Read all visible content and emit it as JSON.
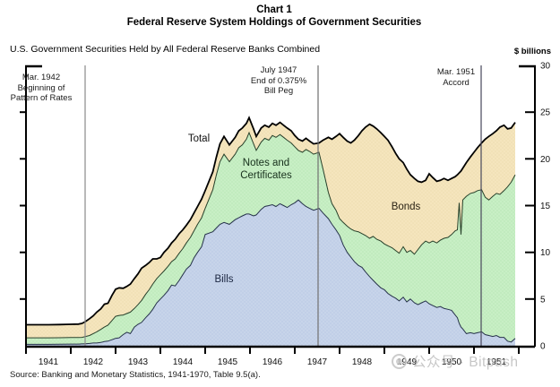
{
  "chart_data": {
    "type": "area",
    "stacked": true,
    "title_line1": "Chart 1",
    "title_line2": "Federal Reserve System Holdings of Government Securities",
    "subtitle": "U.S. Government Securities Held by All Federal Reserve Banks Combined",
    "ylabel": "$ billions",
    "ylim": [
      0,
      30
    ],
    "yticks": [
      0,
      5,
      10,
      15,
      20,
      25,
      30
    ],
    "x_year_labels": [
      "1941",
      "1942",
      "1943",
      "1944",
      "1945",
      "1946",
      "1947",
      "1948",
      "1949",
      "1950",
      "1951"
    ],
    "xlim": [
      1941,
      1952
    ],
    "grid": false,
    "legend": "inline-labels",
    "x": [
      1941.0,
      1941.25,
      1941.5,
      1941.75,
      1942.0,
      1942.17,
      1942.25,
      1942.33,
      1942.42,
      1942.5,
      1942.58,
      1942.67,
      1942.75,
      1942.83,
      1942.92,
      1943.0,
      1943.08,
      1943.17,
      1943.25,
      1943.33,
      1943.42,
      1943.5,
      1943.58,
      1943.67,
      1943.75,
      1943.83,
      1943.92,
      1944.0,
      1944.08,
      1944.17,
      1944.25,
      1944.33,
      1944.42,
      1944.5,
      1944.58,
      1944.67,
      1944.75,
      1944.83,
      1944.92,
      1945.0,
      1945.17,
      1945.25,
      1945.33,
      1945.42,
      1945.54,
      1945.67,
      1945.75,
      1945.83,
      1945.92,
      1945.98,
      1946.08,
      1946.14,
      1946.25,
      1946.33,
      1946.42,
      1946.5,
      1946.58,
      1946.67,
      1946.75,
      1946.83,
      1946.92,
      1947.0,
      1947.08,
      1947.17,
      1947.25,
      1947.33,
      1947.42,
      1947.54,
      1947.63,
      1947.75,
      1947.83,
      1947.92,
      1948.0,
      1948.08,
      1948.17,
      1948.25,
      1948.33,
      1948.42,
      1948.5,
      1948.58,
      1948.67,
      1948.75,
      1948.83,
      1948.92,
      1949.0,
      1949.08,
      1949.17,
      1949.25,
      1949.33,
      1949.42,
      1949.5,
      1949.58,
      1949.67,
      1949.75,
      1949.83,
      1949.92,
      1950.0,
      1950.08,
      1950.17,
      1950.25,
      1950.33,
      1950.42,
      1950.5,
      1950.58,
      1950.63,
      1950.67,
      1950.71,
      1950.75,
      1950.83,
      1950.92,
      1951.0,
      1951.08,
      1951.17,
      1951.25,
      1951.33,
      1951.42,
      1951.5,
      1951.58,
      1951.67,
      1951.75,
      1951.83,
      1951.92
    ],
    "series": [
      {
        "name": "Bills",
        "fill": "#c7d4ea",
        "dot": "#a9bddd",
        "edge": "#26324a",
        "values": [
          0.15,
          0.15,
          0.15,
          0.16,
          0.18,
          0.18,
          0.2,
          0.22,
          0.25,
          0.3,
          0.3,
          0.35,
          0.45,
          0.5,
          0.65,
          0.8,
          0.85,
          1.2,
          1.45,
          1.3,
          2.0,
          2.3,
          2.5,
          3.0,
          3.4,
          3.9,
          4.6,
          5.0,
          5.4,
          5.9,
          6.5,
          6.4,
          7.0,
          7.6,
          8.2,
          8.6,
          9.4,
          10.0,
          10.6,
          11.9,
          12.2,
          12.6,
          13.0,
          13.2,
          13.0,
          13.5,
          13.7,
          13.9,
          14.1,
          14.1,
          13.9,
          14.0,
          14.6,
          14.9,
          15.0,
          15.1,
          14.9,
          15.2,
          15.0,
          14.8,
          15.1,
          15.3,
          15.6,
          15.2,
          14.9,
          14.7,
          14.5,
          14.7,
          14.2,
          13.6,
          13.0,
          12.4,
          11.8,
          10.8,
          10.0,
          9.5,
          9.0,
          8.6,
          8.4,
          7.9,
          7.4,
          7.0,
          6.6,
          6.2,
          6.0,
          5.6,
          5.3,
          5.1,
          4.8,
          5.2,
          4.7,
          5.0,
          4.6,
          4.4,
          4.6,
          4.8,
          4.5,
          4.3,
          4.1,
          4.2,
          4.0,
          3.9,
          3.8,
          3.3,
          3.0,
          2.4,
          2.0,
          1.8,
          1.3,
          1.4,
          1.3,
          1.4,
          1.5,
          1.2,
          1.1,
          1.0,
          1.1,
          0.9,
          0.9,
          0.5,
          0.4,
          0.8
        ]
      },
      {
        "name": "Notes and Certificates",
        "fill": "#c8efc5",
        "dot": "#a6dda6",
        "edge": "#27402a",
        "values": [
          0.7,
          0.7,
          0.7,
          0.7,
          0.7,
          0.7,
          0.7,
          0.78,
          0.85,
          1.0,
          1.2,
          1.4,
          1.55,
          1.7,
          2.05,
          2.35,
          2.4,
          2.1,
          2.0,
          2.3,
          2.0,
          2.1,
          2.35,
          2.5,
          2.6,
          2.7,
          2.6,
          2.6,
          2.6,
          2.6,
          2.5,
          2.9,
          2.9,
          2.8,
          2.8,
          3.0,
          2.9,
          3.0,
          3.1,
          2.8,
          4.5,
          5.7,
          6.7,
          7.3,
          6.7,
          7.0,
          7.5,
          7.6,
          8.0,
          8.7,
          7.7,
          6.9,
          7.2,
          7.3,
          7.0,
          7.4,
          7.4,
          7.4,
          7.3,
          7.2,
          6.6,
          6.0,
          5.3,
          5.5,
          6.1,
          6.1,
          6.0,
          6.0,
          4.7,
          2.8,
          2.2,
          2.1,
          1.8,
          2.4,
          2.8,
          3.0,
          3.3,
          3.6,
          3.6,
          3.9,
          4.1,
          4.7,
          4.8,
          5.0,
          4.9,
          5.1,
          5.2,
          5.1,
          5.1,
          5.4,
          5.3,
          5.2,
          5.2,
          5.9,
          6.2,
          6.4,
          6.5,
          6.9,
          6.9,
          7.1,
          7.5,
          7.7,
          8.1,
          9.0,
          9.4,
          12.9,
          9.9,
          13.8,
          14.7,
          14.9,
          15.1,
          15.2,
          15.2,
          14.7,
          14.5,
          15.0,
          15.2,
          15.3,
          15.7,
          16.5,
          17.1,
          17.5
        ]
      },
      {
        "name": "Bonds",
        "fill": "#f5e5bd",
        "dot": "#e4d1a0",
        "edge": "#000000",
        "values": [
          1.4,
          1.4,
          1.4,
          1.41,
          1.42,
          1.44,
          1.5,
          1.6,
          1.8,
          1.9,
          2.1,
          2.2,
          2.45,
          2.35,
          2.7,
          2.9,
          2.95,
          2.85,
          2.9,
          3.0,
          3.2,
          3.3,
          3.45,
          3.1,
          2.9,
          2.7,
          2.1,
          1.85,
          2.0,
          1.95,
          2.0,
          2.1,
          2.1,
          2.0,
          1.9,
          1.9,
          1.9,
          1.9,
          2.0,
          1.9,
          1.9,
          1.9,
          1.9,
          1.9,
          1.8,
          1.8,
          1.8,
          1.8,
          1.7,
          1.6,
          1.6,
          1.5,
          1.5,
          1.4,
          1.4,
          1.3,
          1.3,
          1.3,
          1.3,
          1.3,
          1.3,
          1.2,
          1.2,
          1.2,
          1.2,
          1.1,
          1.1,
          1.0,
          3.1,
          5.9,
          6.9,
          7.9,
          9.1,
          9.1,
          9.1,
          9.2,
          9.7,
          10.3,
          11.0,
          11.6,
          12.2,
          11.8,
          11.8,
          11.6,
          11.5,
          11.3,
          10.8,
          10.4,
          10.1,
          9.0,
          8.9,
          8.1,
          8.1,
          7.3,
          6.7,
          6.5,
          7.4,
          6.8,
          6.6,
          6.4,
          6.4,
          6.1,
          6.0,
          5.8,
          5.9,
          3.2,
          6.8,
          3.4,
          3.6,
          3.9,
          4.3,
          4.6,
          5.0,
          6.2,
          6.8,
          6.7,
          6.7,
          7.2,
          7.0,
          6.2,
          5.8,
          5.6
        ]
      }
    ],
    "total_line": {
      "label": "Total",
      "color": "#000000"
    },
    "labels": {
      "total": "Total",
      "notes_line1": "Notes and",
      "notes_line2": "Certificates",
      "bonds": "Bonds",
      "bills": "Bills"
    },
    "annotations": [
      {
        "x": 1942.32,
        "line_color": "#8a8a8a",
        "lines": [
          "Mar. 1942",
          "Beginning of",
          "Pattern of Rates"
        ]
      },
      {
        "x": 1947.52,
        "line_color": "#6f6f6f",
        "lines": [
          "July 1947",
          "End of 0.375%",
          "Bill Peg"
        ]
      },
      {
        "x": 1951.16,
        "line_color": "#46465a",
        "lines": [
          "Mar. 1951",
          "Accord"
        ]
      }
    ]
  },
  "footer": {
    "source": "Source:  Banking and Monetary Statistics, 1941-1970, Table 9.5(a).",
    "watermark": "公众号 · Bitpush"
  }
}
